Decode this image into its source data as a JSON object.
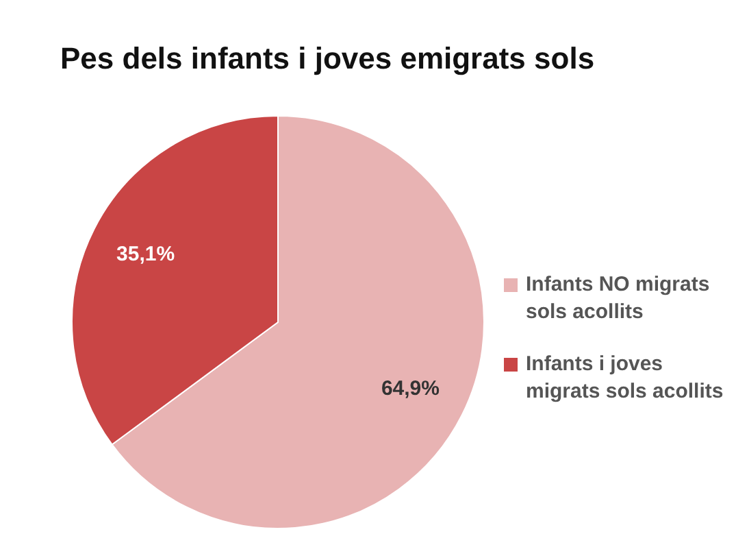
{
  "chart_data": {
    "type": "pie",
    "title": "Pes dels infants i joves emigrats sols",
    "categories": [
      "Infants NO migrats sols acollits",
      "Infants i joves migrats sols acollits"
    ],
    "values": [
      64.9,
      35.1
    ],
    "colors": [
      "#e8b3b3",
      "#c94545"
    ],
    "value_labels": [
      "64,9%",
      "35,1%"
    ],
    "legend": "right"
  }
}
